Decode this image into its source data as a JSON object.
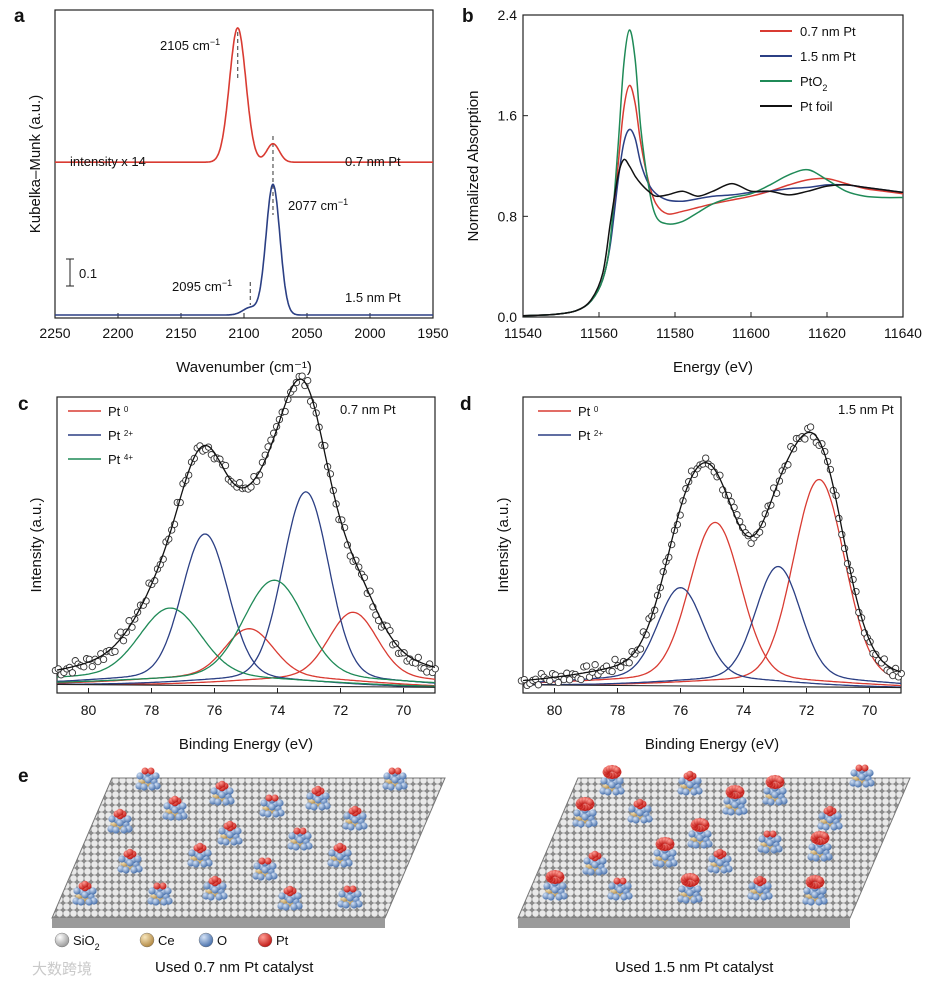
{
  "panel_labels": [
    "a",
    "b",
    "c",
    "d",
    "e"
  ],
  "chart_data": [
    {
      "panel": "a",
      "type": "line",
      "xlabel": "Wavenumber (cm⁻¹)",
      "ylabel": "Kubelka–Munk (a.u.)",
      "xlim": [
        2250,
        1950
      ],
      "ylim": [
        0,
        1.25
      ],
      "xticks": [
        "2250",
        "2200",
        "2150",
        "2100",
        "2050",
        "2000",
        "1950"
      ],
      "scale_bar_label": "0.1",
      "series": [
        {
          "name": "0.7 nm Pt",
          "color": "#d93b32",
          "baseline": 0.62,
          "peaks": [
            {
              "center": 2105,
              "height": 0.545,
              "width": 6.5
            },
            {
              "center": 2077,
              "height": 0.075,
              "width": 5
            }
          ]
        },
        {
          "name": "1.5 nm Pt",
          "color": "#2b3f84",
          "baseline": 0.0,
          "peaks": [
            {
              "center": 2077,
              "height": 0.53,
              "width": 5.5
            },
            {
              "center": 2095,
              "height": 0.03,
              "width": 6
            }
          ]
        }
      ],
      "annotations": {
        "intensity": "intensity x 14",
        "peak_2105": "2105 cm⁻¹",
        "peak_2077": "2077 cm⁻¹",
        "peak_2095": "2095 cm⁻¹"
      },
      "series_labels": [
        "0.7 nm Pt",
        "1.5 nm Pt"
      ],
      "dashed_lines": [
        2105,
        2077,
        2095
      ]
    },
    {
      "panel": "b",
      "type": "line",
      "xlabel": "Energy (eV)",
      "ylabel": "Normalized Absorption",
      "xlim": [
        11540,
        11640
      ],
      "ylim": [
        0,
        2.4
      ],
      "xticks": [
        "11540",
        "11560",
        "11580",
        "11600",
        "11620",
        "11640"
      ],
      "yticks": [
        "0.0",
        "0.8",
        "1.6",
        "2.4"
      ],
      "series": [
        {
          "name": "0.7 nm Pt",
          "color": "#d93b32",
          "x": [
            11540,
            11548,
            11554,
            11558,
            11561,
            11563,
            11565,
            11566.5,
            11568,
            11569.5,
            11571,
            11573,
            11575,
            11578,
            11582,
            11586,
            11590,
            11595,
            11600,
            11605,
            11610,
            11615,
            11620,
            11625,
            11630,
            11635,
            11640
          ],
          "y": [
            0.01,
            0.02,
            0.05,
            0.13,
            0.3,
            0.6,
            1.2,
            1.65,
            1.84,
            1.7,
            1.38,
            1.08,
            0.9,
            0.82,
            0.84,
            0.87,
            0.9,
            0.93,
            0.96,
            1.0,
            1.05,
            1.09,
            1.1,
            1.06,
            1.02,
            1.0,
            0.98
          ]
        },
        {
          "name": "1.5 nm Pt",
          "color": "#2b3f84",
          "x": [
            11540,
            11548,
            11554,
            11558,
            11561,
            11563,
            11565,
            11566.5,
            11568,
            11569.5,
            11571,
            11573,
            11575,
            11578,
            11582,
            11586,
            11590,
            11595,
            11600,
            11605,
            11610,
            11615,
            11620,
            11625,
            11630,
            11635,
            11640
          ],
          "y": [
            0.01,
            0.02,
            0.05,
            0.13,
            0.3,
            0.58,
            1.08,
            1.38,
            1.49,
            1.42,
            1.22,
            1.06,
            0.98,
            0.93,
            0.92,
            0.94,
            0.96,
            0.97,
            0.99,
            1.0,
            1.02,
            1.03,
            1.05,
            1.05,
            1.03,
            1.01,
            0.99
          ]
        },
        {
          "name": "PtO₂",
          "color": "#1f8a57",
          "x": [
            11540,
            11548,
            11554,
            11558,
            11561,
            11563,
            11565,
            11566.5,
            11568,
            11569.5,
            11571,
            11573,
            11575,
            11578,
            11582,
            11586,
            11590,
            11595,
            11600,
            11605,
            11610,
            11615,
            11620,
            11625,
            11630,
            11635,
            11640
          ],
          "y": [
            0.01,
            0.02,
            0.05,
            0.13,
            0.3,
            0.62,
            1.35,
            2.0,
            2.28,
            2.05,
            1.5,
            1.05,
            0.8,
            0.74,
            0.76,
            0.83,
            0.9,
            0.95,
            0.98,
            1.05,
            1.13,
            1.17,
            1.09,
            1.0,
            0.96,
            0.95,
            0.95
          ]
        },
        {
          "name": "Pt foil",
          "color": "#111111",
          "x": [
            11540,
            11548,
            11554,
            11558,
            11561,
            11563,
            11565,
            11566.5,
            11568,
            11569.5,
            11571,
            11573,
            11575,
            11578,
            11582,
            11586,
            11590,
            11595,
            11600,
            11605,
            11610,
            11615,
            11620,
            11625,
            11630,
            11635,
            11640
          ],
          "y": [
            0.01,
            0.02,
            0.05,
            0.14,
            0.35,
            0.75,
            1.12,
            1.25,
            1.2,
            1.12,
            1.06,
            1.0,
            0.96,
            0.97,
            1.0,
            0.96,
            1.0,
            1.06,
            1.0,
            1.0,
            0.97,
            1.0,
            1.04,
            1.05,
            1.03,
            1.01,
            0.99
          ]
        }
      ],
      "legend_position": "top-right"
    },
    {
      "panel": "c",
      "type": "scatter",
      "xlabel": "Binding Energy (eV)",
      "ylabel": "Intensity (a.u.)",
      "title": "0.7 nm Pt",
      "xlim": [
        81,
        69
      ],
      "ylim": [
        0,
        1.0
      ],
      "xticks": [
        "80",
        "78",
        "76",
        "74",
        "72",
        "70"
      ],
      "components": [
        {
          "name": "Pt 0",
          "label": "Pt",
          "sup": "0",
          "color": "#d93b32",
          "peaks": [
            {
              "center": 71.6,
              "height": 0.22,
              "width": 0.75
            },
            {
              "center": 74.9,
              "height": 0.16,
              "width": 0.75
            }
          ]
        },
        {
          "name": "Pt 2+",
          "label": "Pt",
          "sup": "2+",
          "color": "#2b3f84",
          "peaks": [
            {
              "center": 73.1,
              "height": 0.64,
              "width": 0.72
            },
            {
              "center": 76.3,
              "height": 0.49,
              "width": 0.72
            }
          ]
        },
        {
          "name": "Pt 4+",
          "label": "Pt",
          "sup": "4+",
          "color": "#1f8a57",
          "peaks": [
            {
              "center": 74.1,
              "height": 0.33,
              "width": 0.95
            },
            {
              "center": 77.4,
              "height": 0.23,
              "width": 0.95
            }
          ]
        }
      ],
      "background": [
        0.03,
        0.02
      ]
    },
    {
      "panel": "d",
      "type": "scatter",
      "xlabel": "Binding Energy (eV)",
      "ylabel": "Intensity (a.u.)",
      "title": "1.5 nm Pt",
      "xlim": [
        81,
        69
      ],
      "ylim": [
        0,
        1.0
      ],
      "xticks": [
        "80",
        "78",
        "76",
        "74",
        "72",
        "70"
      ],
      "components": [
        {
          "name": "Pt 0",
          "label": "Pt",
          "sup": "0",
          "color": "#d93b32",
          "peaks": [
            {
              "center": 71.6,
              "height": 0.72,
              "width": 0.8
            },
            {
              "center": 74.9,
              "height": 0.56,
              "width": 0.8
            }
          ]
        },
        {
          "name": "Pt 2+",
          "label": "Pt",
          "sup": "2+",
          "color": "#2b3f84",
          "peaks": [
            {
              "center": 72.9,
              "height": 0.4,
              "width": 0.7
            },
            {
              "center": 76.0,
              "height": 0.32,
              "width": 0.7
            }
          ]
        }
      ],
      "background": [
        0.03,
        0.02
      ]
    }
  ],
  "panel_e": {
    "legend": [
      {
        "label": "SiO",
        "sub": "2",
        "color": "#b8b8b8"
      },
      {
        "label": "Ce",
        "sub": "",
        "color": "#d4b47a"
      },
      {
        "label": "O",
        "sub": "",
        "color": "#6f95c9"
      },
      {
        "label": "Pt",
        "sub": "",
        "color": "#e0302c"
      }
    ],
    "captions": [
      "Used 0.7 nm Pt catalyst",
      "Used 1.5 nm Pt catalyst"
    ]
  },
  "watermark": "大数跨境"
}
